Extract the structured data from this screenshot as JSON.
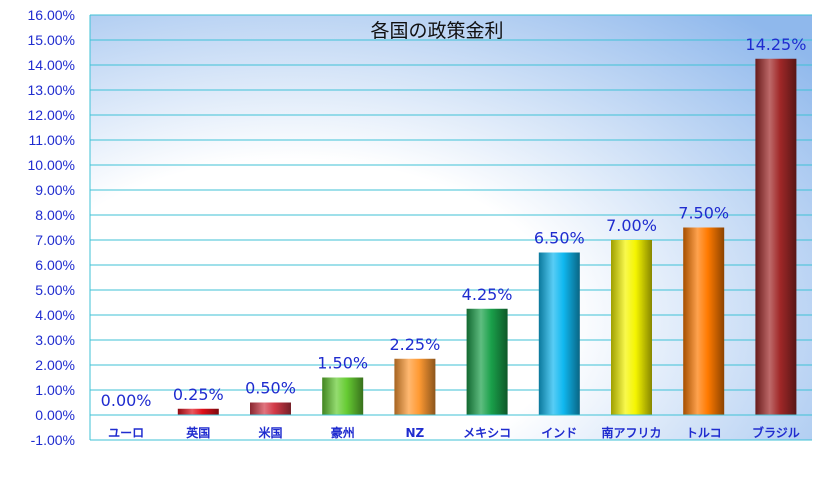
{
  "chart_data": {
    "type": "bar",
    "title": "各国の政策金利",
    "categories": [
      "ユーロ",
      "英国",
      "米国",
      "豪州",
      "NZ",
      "メキシコ",
      "インド",
      "南アフリカ",
      "トルコ",
      "ブラジル"
    ],
    "values": [
      0.0,
      0.25,
      0.5,
      1.5,
      2.25,
      4.25,
      6.5,
      7.0,
      7.5,
      14.25
    ],
    "data_labels": [
      "0.00%",
      "0.25%",
      "0.50%",
      "1.50%",
      "2.25%",
      "4.25%",
      "6.50%",
      "7.00%",
      "7.50%",
      "14.25%"
    ],
    "y_ticks": [
      "16.00%",
      "15.00%",
      "14.00%",
      "13.00%",
      "12.00%",
      "11.00%",
      "10.00%",
      "9.00%",
      "8.00%",
      "7.00%",
      "6.00%",
      "5.00%",
      "4.00%",
      "3.00%",
      "2.00%",
      "1.00%",
      "0.00%",
      "-1.00%"
    ],
    "ylim": [
      -1,
      16
    ],
    "y_unit": "%",
    "grid": true,
    "legend": "none",
    "bar_colors": [
      "#cccccc",
      "#e0101a",
      "#d23a48",
      "#66cc33",
      "#ff9a33",
      "#1aa04a",
      "#10b8f0",
      "#f5f500",
      "#ff7a00",
      "#a02828"
    ],
    "colors": {
      "axis_text": "#1f2ccf",
      "gridline": "#3fc2d6",
      "background_edge": "#8fb8ec",
      "title_text": "#111111"
    }
  }
}
